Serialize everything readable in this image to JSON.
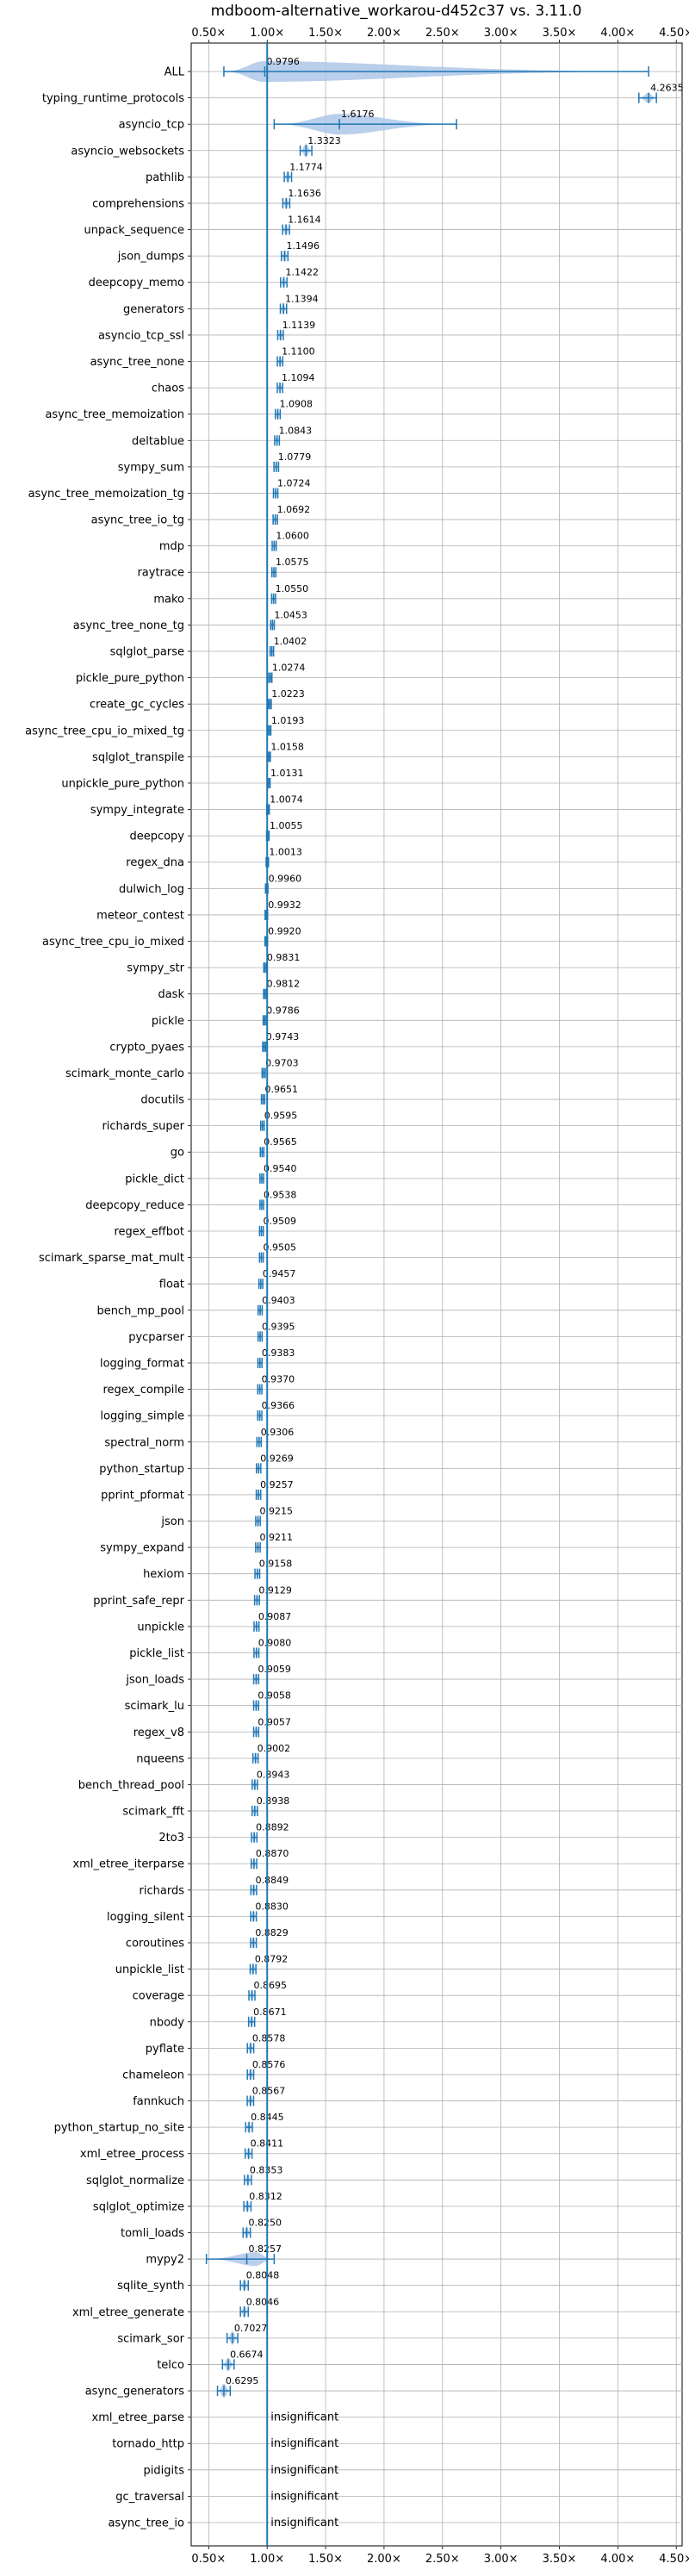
{
  "chart_data": {
    "type": "violin",
    "title": "mdboom-alternative_workarou-d452c37 vs. 3.11.0",
    "xlabel": "",
    "ylabel": "",
    "xlim": [
      0.35,
      4.55
    ],
    "xticks": [
      0.5,
      1.0,
      1.5,
      2.0,
      2.5,
      3.0,
      3.5,
      4.0,
      4.5
    ],
    "xtick_labels": [
      "0.50×",
      "1.00×",
      "1.50×",
      "2.00×",
      "2.50×",
      "3.00×",
      "3.50×",
      "4.00×",
      "4.50×"
    ],
    "reference_line": 1.0,
    "grid": true,
    "color": "#1f77b4",
    "violin_color": "#aec7e8",
    "benchmarks": [
      {
        "name": "ALL",
        "value": 0.9796,
        "label": "0.9796"
      },
      {
        "name": "typing_runtime_protocols",
        "value": 4.2635,
        "label": "4.2635"
      },
      {
        "name": "asyncio_tcp",
        "value": 1.6176,
        "label": "1.6176"
      },
      {
        "name": "asyncio_websockets",
        "value": 1.3323,
        "label": "1.3323"
      },
      {
        "name": "pathlib",
        "value": 1.1774,
        "label": "1.1774"
      },
      {
        "name": "comprehensions",
        "value": 1.1636,
        "label": "1.1636"
      },
      {
        "name": "unpack_sequence",
        "value": 1.1614,
        "label": "1.1614"
      },
      {
        "name": "json_dumps",
        "value": 1.1496,
        "label": "1.1496"
      },
      {
        "name": "deepcopy_memo",
        "value": 1.1422,
        "label": "1.1422"
      },
      {
        "name": "generators",
        "value": 1.1394,
        "label": "1.1394"
      },
      {
        "name": "asyncio_tcp_ssl",
        "value": 1.1139,
        "label": "1.1139"
      },
      {
        "name": "async_tree_none",
        "value": 1.11,
        "label": "1.1100"
      },
      {
        "name": "chaos",
        "value": 1.1094,
        "label": "1.1094"
      },
      {
        "name": "async_tree_memoization",
        "value": 1.0908,
        "label": "1.0908"
      },
      {
        "name": "deltablue",
        "value": 1.0843,
        "label": "1.0843"
      },
      {
        "name": "sympy_sum",
        "value": 1.0779,
        "label": "1.0779"
      },
      {
        "name": "async_tree_memoization_tg",
        "value": 1.0724,
        "label": "1.0724"
      },
      {
        "name": "async_tree_io_tg",
        "value": 1.0692,
        "label": "1.0692"
      },
      {
        "name": "mdp",
        "value": 1.06,
        "label": "1.0600"
      },
      {
        "name": "raytrace",
        "value": 1.0575,
        "label": "1.0575"
      },
      {
        "name": "mako",
        "value": 1.055,
        "label": "1.0550"
      },
      {
        "name": "async_tree_none_tg",
        "value": 1.0453,
        "label": "1.0453"
      },
      {
        "name": "sqlglot_parse",
        "value": 1.0402,
        "label": "1.0402"
      },
      {
        "name": "pickle_pure_python",
        "value": 1.0274,
        "label": "1.0274"
      },
      {
        "name": "create_gc_cycles",
        "value": 1.0223,
        "label": "1.0223"
      },
      {
        "name": "async_tree_cpu_io_mixed_tg",
        "value": 1.0193,
        "label": "1.0193"
      },
      {
        "name": "sqlglot_transpile",
        "value": 1.0158,
        "label": "1.0158"
      },
      {
        "name": "unpickle_pure_python",
        "value": 1.0131,
        "label": "1.0131"
      },
      {
        "name": "sympy_integrate",
        "value": 1.0074,
        "label": "1.0074"
      },
      {
        "name": "deepcopy",
        "value": 1.0055,
        "label": "1.0055"
      },
      {
        "name": "regex_dna",
        "value": 1.0013,
        "label": "1.0013"
      },
      {
        "name": "dulwich_log",
        "value": 0.996,
        "label": "0.9960"
      },
      {
        "name": "meteor_contest",
        "value": 0.9932,
        "label": "0.9932"
      },
      {
        "name": "async_tree_cpu_io_mixed",
        "value": 0.992,
        "label": "0.9920"
      },
      {
        "name": "sympy_str",
        "value": 0.9831,
        "label": "0.9831"
      },
      {
        "name": "dask",
        "value": 0.9812,
        "label": "0.9812"
      },
      {
        "name": "pickle",
        "value": 0.9786,
        "label": "0.9786"
      },
      {
        "name": "crypto_pyaes",
        "value": 0.9743,
        "label": "0.9743"
      },
      {
        "name": "scimark_monte_carlo",
        "value": 0.9703,
        "label": "0.9703"
      },
      {
        "name": "docutils",
        "value": 0.9651,
        "label": "0.9651"
      },
      {
        "name": "richards_super",
        "value": 0.9595,
        "label": "0.9595"
      },
      {
        "name": "go",
        "value": 0.9565,
        "label": "0.9565"
      },
      {
        "name": "pickle_dict",
        "value": 0.954,
        "label": "0.9540"
      },
      {
        "name": "deepcopy_reduce",
        "value": 0.9538,
        "label": "0.9538"
      },
      {
        "name": "regex_effbot",
        "value": 0.9509,
        "label": "0.9509"
      },
      {
        "name": "scimark_sparse_mat_mult",
        "value": 0.9505,
        "label": "0.9505"
      },
      {
        "name": "float",
        "value": 0.9457,
        "label": "0.9457"
      },
      {
        "name": "bench_mp_pool",
        "value": 0.9403,
        "label": "0.9403"
      },
      {
        "name": "pycparser",
        "value": 0.9395,
        "label": "0.9395"
      },
      {
        "name": "logging_format",
        "value": 0.9383,
        "label": "0.9383"
      },
      {
        "name": "regex_compile",
        "value": 0.937,
        "label": "0.9370"
      },
      {
        "name": "logging_simple",
        "value": 0.9366,
        "label": "0.9366"
      },
      {
        "name": "spectral_norm",
        "value": 0.9306,
        "label": "0.9306"
      },
      {
        "name": "python_startup",
        "value": 0.9269,
        "label": "0.9269"
      },
      {
        "name": "pprint_pformat",
        "value": 0.9257,
        "label": "0.9257"
      },
      {
        "name": "json",
        "value": 0.9215,
        "label": "0.9215"
      },
      {
        "name": "sympy_expand",
        "value": 0.9211,
        "label": "0.9211"
      },
      {
        "name": "hexiom",
        "value": 0.9158,
        "label": "0.9158"
      },
      {
        "name": "pprint_safe_repr",
        "value": 0.9129,
        "label": "0.9129"
      },
      {
        "name": "unpickle",
        "value": 0.9087,
        "label": "0.9087"
      },
      {
        "name": "pickle_list",
        "value": 0.908,
        "label": "0.9080"
      },
      {
        "name": "json_loads",
        "value": 0.9059,
        "label": "0.9059"
      },
      {
        "name": "scimark_lu",
        "value": 0.9058,
        "label": "0.9058"
      },
      {
        "name": "regex_v8",
        "value": 0.9057,
        "label": "0.9057"
      },
      {
        "name": "nqueens",
        "value": 0.9002,
        "label": "0.9002"
      },
      {
        "name": "bench_thread_pool",
        "value": 0.8943,
        "label": "0.8943"
      },
      {
        "name": "scimark_fft",
        "value": 0.8938,
        "label": "0.8938"
      },
      {
        "name": "2to3",
        "value": 0.8892,
        "label": "0.8892"
      },
      {
        "name": "xml_etree_iterparse",
        "value": 0.887,
        "label": "0.8870"
      },
      {
        "name": "richards",
        "value": 0.8849,
        "label": "0.8849"
      },
      {
        "name": "logging_silent",
        "value": 0.883,
        "label": "0.8830"
      },
      {
        "name": "coroutines",
        "value": 0.8829,
        "label": "0.8829"
      },
      {
        "name": "unpickle_list",
        "value": 0.8792,
        "label": "0.8792"
      },
      {
        "name": "coverage",
        "value": 0.8695,
        "label": "0.8695"
      },
      {
        "name": "nbody",
        "value": 0.8671,
        "label": "0.8671"
      },
      {
        "name": "pyflate",
        "value": 0.8578,
        "label": "0.8578"
      },
      {
        "name": "chameleon",
        "value": 0.8576,
        "label": "0.8576"
      },
      {
        "name": "fannkuch",
        "value": 0.8567,
        "label": "0.8567"
      },
      {
        "name": "python_startup_no_site",
        "value": 0.8445,
        "label": "0.8445"
      },
      {
        "name": "xml_etree_process",
        "value": 0.8411,
        "label": "0.8411"
      },
      {
        "name": "sqlglot_normalize",
        "value": 0.8353,
        "label": "0.8353"
      },
      {
        "name": "sqlglot_optimize",
        "value": 0.8312,
        "label": "0.8312"
      },
      {
        "name": "tomli_loads",
        "value": 0.825,
        "label": "0.8250"
      },
      {
        "name": "mypy2",
        "value": 0.8257,
        "label": "0.8257"
      },
      {
        "name": "sqlite_synth",
        "value": 0.8048,
        "label": "0.8048"
      },
      {
        "name": "xml_etree_generate",
        "value": 0.8046,
        "label": "0.8046"
      },
      {
        "name": "scimark_sor",
        "value": 0.7027,
        "label": "0.7027"
      },
      {
        "name": "telco",
        "value": 0.6674,
        "label": "0.6674"
      },
      {
        "name": "async_generators",
        "value": 0.6295,
        "label": "0.6295"
      },
      {
        "name": "xml_etree_parse",
        "value": null,
        "label": "insignificant"
      },
      {
        "name": "tornado_http",
        "value": null,
        "label": "insignificant"
      },
      {
        "name": "pidigits",
        "value": null,
        "label": "insignificant"
      },
      {
        "name": "gc_traversal",
        "value": null,
        "label": "insignificant"
      },
      {
        "name": "async_tree_io",
        "value": null,
        "label": "insignificant"
      }
    ]
  }
}
